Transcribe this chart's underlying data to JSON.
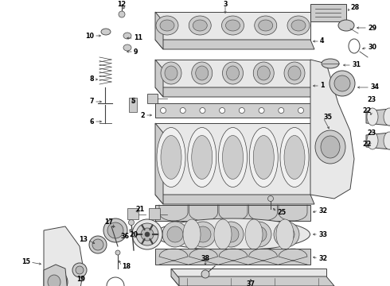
{
  "bg_color": "#ffffff",
  "lc": "#404040",
  "pf": "#e8e8e8",
  "pfd": "#cccccc",
  "pfdark": "#b8b8b8"
}
